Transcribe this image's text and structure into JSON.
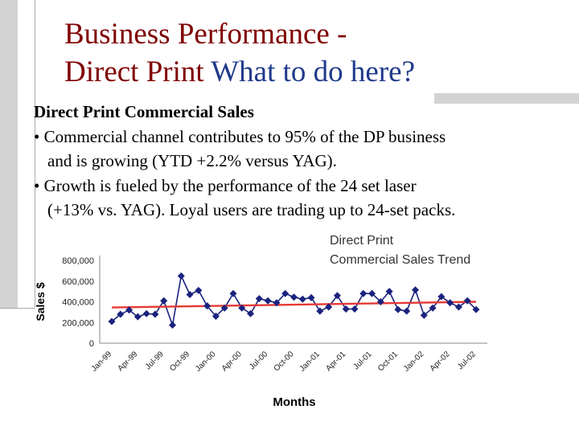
{
  "slide": {
    "title_line1": "Business Performance -",
    "title_line2_a": "Direct Print",
    "title_line2_b": "What to do here?",
    "heading": "Direct Print  Commercial Sales",
    "bullet1_a": "• Commercial channel contributes to 95% of the DP business",
    "bullet1_b": "and is growing (YTD +2.2% versus YAG).",
    "bullet2_a": "• Growth is fueled by the performance of the 24 set laser",
    "bullet2_b": "(+13%  vs. YAG).  Loyal users are trading up to 24-set packs."
  },
  "colors": {
    "title": "#800000",
    "title_question": "#1f3a8a",
    "series": "#1a237e",
    "trend": "#e53935",
    "decor": "#d3d3d3"
  },
  "chart_data": {
    "type": "line",
    "title_line1": "Direct Print",
    "title_line2": "Commercial Sales Trend",
    "xlabel": "Months",
    "ylabel": "Sales $",
    "ylim": [
      0,
      800000
    ],
    "yticks": [
      "0",
      "200,000",
      "400,000",
      "600,000",
      "800,000"
    ],
    "xtick_labels": [
      "Jan-99",
      "Apr-99",
      "Jul-99",
      "Oct-99",
      "Jan-00",
      "Apr-00",
      "Jul-00",
      "Oct-00",
      "Jan-01",
      "Apr-01",
      "Jul-01",
      "Oct-01",
      "Jan-02",
      "Apr-02",
      "Jul-02"
    ],
    "grid": false,
    "legend": "none",
    "series": [
      {
        "values": [
          210000,
          280000,
          320000,
          255000,
          285000,
          280000,
          410000,
          175000,
          650000,
          470000,
          510000,
          360000,
          260000,
          340000,
          480000,
          340000,
          285000,
          430000,
          410000,
          390000,
          480000,
          445000,
          425000,
          440000,
          310000,
          350000,
          460000,
          330000,
          330000,
          480000,
          480000,
          400000,
          500000,
          325000,
          310000,
          515000,
          270000,
          340000,
          450000,
          390000,
          350000,
          410000,
          325000
        ]
      }
    ],
    "trendline": {
      "start": 345000,
      "end": 400000
    }
  }
}
